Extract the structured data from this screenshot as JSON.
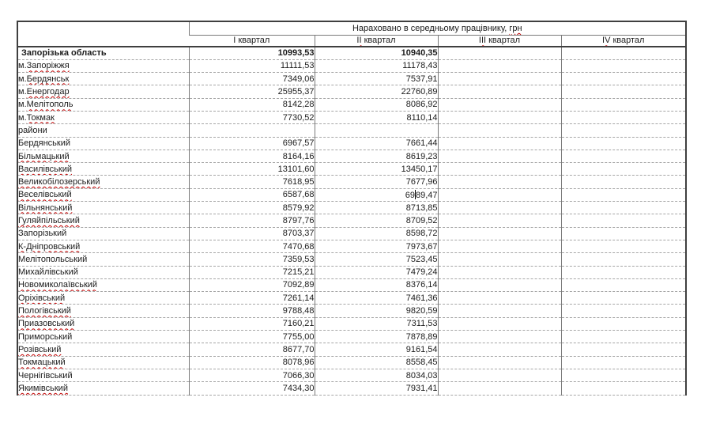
{
  "colors": {
    "text": "#1c1c1c",
    "spellcheck_squiggle": "#c00000",
    "outer_border": "#3f3f3f",
    "vertical_grid": "#7a7a7a",
    "horizontal_grid_dashed": "#a6a6a6",
    "background": "#ffffff"
  },
  "header": {
    "title_segments": [
      {
        "t": "Нараховано в середньому працівнику, ",
        "sq": false
      },
      {
        "t": "грн",
        "sq": true
      }
    ],
    "quarters": [
      {
        "name": "q1",
        "segments": [
          {
            "t": "I квартал",
            "sq": false
          }
        ]
      },
      {
        "name": "q2",
        "segments": [
          {
            "t": "II",
            "sq": true
          },
          {
            "t": " квартал",
            "sq": false
          }
        ]
      },
      {
        "name": "q3",
        "segments": [
          {
            "t": "III",
            "sq": true
          },
          {
            "t": " квартал",
            "sq": false
          }
        ]
      },
      {
        "name": "q4",
        "segments": [
          {
            "t": "IV",
            "sq": true
          },
          {
            "t": " квартал",
            "sq": false
          }
        ]
      }
    ]
  },
  "rows": [
    {
      "segments": [
        {
          "t": "Запорізька область",
          "sq": false
        }
      ],
      "bold": true,
      "q1": "10993,53",
      "q2": "10940,35",
      "q3": "",
      "q4": ""
    },
    {
      "segments": [
        {
          "t": "м.",
          "sq": false
        },
        {
          "t": "Запоріжжя",
          "sq": true
        }
      ],
      "bold": false,
      "q1": "11111,53",
      "q2": "11178,43",
      "q3": "",
      "q4": ""
    },
    {
      "segments": [
        {
          "t": "м.",
          "sq": false
        },
        {
          "t": "Бердянськ",
          "sq": true
        }
      ],
      "bold": false,
      "q1": "7349,06",
      "q2": "7537,91",
      "q3": "",
      "q4": ""
    },
    {
      "segments": [
        {
          "t": "м.",
          "sq": false
        },
        {
          "t": "Енергодар",
          "sq": true
        }
      ],
      "bold": false,
      "q1": "25955,37",
      "q2": "22760,89",
      "q3": "",
      "q4": ""
    },
    {
      "segments": [
        {
          "t": "м.",
          "sq": false
        },
        {
          "t": "Мелітополь",
          "sq": true
        }
      ],
      "bold": false,
      "q1": "8142,28",
      "q2": "8086,92",
      "q3": "",
      "q4": ""
    },
    {
      "segments": [
        {
          "t": "м.",
          "sq": false
        },
        {
          "t": "Токмак",
          "sq": true
        }
      ],
      "bold": false,
      "q1": "7730,52",
      "q2": "8110,14",
      "q3": "",
      "q4": ""
    },
    {
      "segments": [
        {
          "t": "райони",
          "sq": false
        }
      ],
      "bold": false,
      "q1": "",
      "q2": "",
      "q3": "",
      "q4": ""
    },
    {
      "segments": [
        {
          "t": "Бердянський",
          "sq": false
        }
      ],
      "bold": false,
      "q1": "6967,57",
      "q2": "7661,44",
      "q3": "",
      "q4": ""
    },
    {
      "segments": [
        {
          "t": "Більмацький",
          "sq": true
        }
      ],
      "bold": false,
      "q1": "8164,16",
      "q2": "8619,23",
      "q3": "",
      "q4": ""
    },
    {
      "segments": [
        {
          "t": "Василівський",
          "sq": true
        }
      ],
      "bold": false,
      "q1": "13101,60",
      "q2": "13450,17",
      "q3": "",
      "q4": ""
    },
    {
      "segments": [
        {
          "t": "Великобілозерський",
          "sq": true
        }
      ],
      "bold": false,
      "q1": "7618,95",
      "q2": "7677,96",
      "q3": "",
      "q4": ""
    },
    {
      "segments": [
        {
          "t": "Веселівський",
          "sq": true
        }
      ],
      "bold": false,
      "q1": "6587,68",
      "q2": "6989,47",
      "q3": "",
      "q4": "",
      "caret": {
        "col": "q2",
        "index": 2
      }
    },
    {
      "segments": [
        {
          "t": "Вільнянський",
          "sq": true
        }
      ],
      "bold": false,
      "q1": "8579,92",
      "q2": "8713,85",
      "q3": "",
      "q4": ""
    },
    {
      "segments": [
        {
          "t": "Гуляйпільський",
          "sq": true
        }
      ],
      "bold": false,
      "q1": "8797,76",
      "q2": "8709,52",
      "q3": "",
      "q4": ""
    },
    {
      "segments": [
        {
          "t": "Запорізький",
          "sq": false
        }
      ],
      "bold": false,
      "q1": "8703,37",
      "q2": "8598,72",
      "q3": "",
      "q4": ""
    },
    {
      "segments": [
        {
          "t": "К-Дніпровський",
          "sq": true
        }
      ],
      "bold": false,
      "q1": "7470,68",
      "q2": "7973,67",
      "q3": "",
      "q4": ""
    },
    {
      "segments": [
        {
          "t": "Мелітопольський",
          "sq": false
        }
      ],
      "bold": false,
      "q1": "7359,53",
      "q2": "7523,45",
      "q3": "",
      "q4": ""
    },
    {
      "segments": [
        {
          "t": "Михайлівський",
          "sq": false
        }
      ],
      "bold": false,
      "q1": "7215,21",
      "q2": "7479,24",
      "q3": "",
      "q4": ""
    },
    {
      "segments": [
        {
          "t": "Новомиколаївський",
          "sq": true
        }
      ],
      "bold": false,
      "q1": "7092,89",
      "q2": "8376,14",
      "q3": "",
      "q4": ""
    },
    {
      "segments": [
        {
          "t": "Оріхівський",
          "sq": true
        }
      ],
      "bold": false,
      "q1": "7261,14",
      "q2": "7461,36",
      "q3": "",
      "q4": ""
    },
    {
      "segments": [
        {
          "t": "Пологівський",
          "sq": true
        }
      ],
      "bold": false,
      "q1": "9788,48",
      "q2": "9820,59",
      "q3": "",
      "q4": ""
    },
    {
      "segments": [
        {
          "t": "Приазовський",
          "sq": true
        }
      ],
      "bold": false,
      "q1": "7160,21",
      "q2": "7311,53",
      "q3": "",
      "q4": ""
    },
    {
      "segments": [
        {
          "t": "Приморський",
          "sq": false
        }
      ],
      "bold": false,
      "q1": "7755,00",
      "q2": "7878,89",
      "q3": "",
      "q4": ""
    },
    {
      "segments": [
        {
          "t": "Розівський",
          "sq": true
        }
      ],
      "bold": false,
      "q1": "8677,70",
      "q2": "9161,54",
      "q3": "",
      "q4": ""
    },
    {
      "segments": [
        {
          "t": "Токмацький",
          "sq": true
        }
      ],
      "bold": false,
      "q1": "8078,96",
      "q2": "8558,45",
      "q3": "",
      "q4": ""
    },
    {
      "segments": [
        {
          "t": "Чернігівський",
          "sq": false
        }
      ],
      "bold": false,
      "q1": "7066,30",
      "q2": "8034,03",
      "q3": "",
      "q4": ""
    },
    {
      "segments": [
        {
          "t": "Якимівський",
          "sq": true
        }
      ],
      "bold": false,
      "q1": "7434,30",
      "q2": "7931,41",
      "q3": "",
      "q4": ""
    }
  ]
}
